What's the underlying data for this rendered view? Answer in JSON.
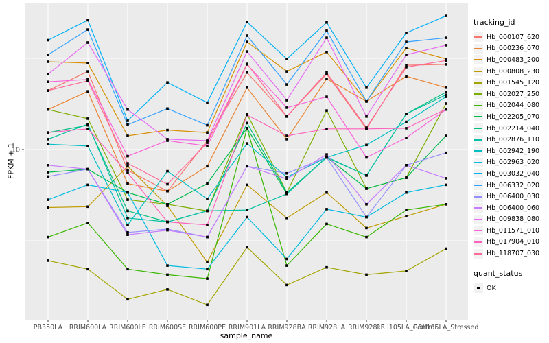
{
  "figure": {
    "colors": {
      "panel_bg": "#EBEBEB",
      "grid_major": "#FFFFFF",
      "grid_minor": "#F7F7F7",
      "tick_text": "#4D4D4D",
      "axis_title": "#000000",
      "point": "#000000",
      "legend_key_bg": "#F2F2F2"
    }
  },
  "chart_data": {
    "type": "line",
    "title": "",
    "xlabel": "sample_name",
    "ylabel": "FPKM + 1",
    "x_scale": "discrete",
    "y_scale": "log10",
    "y_ticks_shown": [
      10
    ],
    "ylim": [
      1.2,
      60
    ],
    "grid": "ggplot-grey-panel",
    "legend_position": "right",
    "legend_title": "tracking_id",
    "point_legend": {
      "title": "quant_status",
      "label": "OK",
      "marker": "black-square"
    },
    "marker": "black-square",
    "categories": [
      "PB350LA",
      "RRIM600LA",
      "RRIM600LE",
      "RRIM600SE",
      "RRIM600PE",
      "RRIM901LA",
      "RRIM928BA",
      "RRIM928LA",
      "RRIM928LE",
      "RRII105LA_Control",
      "RRII105LA_Stressed"
    ],
    "series": [
      {
        "name": "Hb_000107_620",
        "color": "#F8766D",
        "values": [
          21.1,
          26.9,
          7.7,
          5.9,
          11.2,
          26.5,
          15.2,
          26.0,
          13.0,
          29.1,
          29.4
        ]
      },
      {
        "name": "Hb_000236_070",
        "color": "#EA8331",
        "values": [
          16.6,
          20.9,
          6.5,
          5.9,
          8.1,
          21.9,
          11.4,
          24.5,
          18.4,
          25.3,
          21.9
        ]
      },
      {
        "name": "Hb_000483_200",
        "color": "#D89000",
        "values": [
          30.4,
          29.9,
          11.9,
          12.8,
          12.4,
          39.1,
          26.9,
          34.4,
          18.4,
          36.2,
          31.5
        ]
      },
      {
        "name": "Hb_000808_230",
        "color": "#C09B00",
        "values": [
          4.8,
          4.85,
          8.1,
          4.9,
          2.4,
          6.4,
          4.2,
          5.8,
          3.7,
          4.3,
          5.0
        ]
      },
      {
        "name": "Hb_001545_120",
        "color": "#A3A500",
        "values": [
          2.45,
          2.2,
          1.5,
          1.7,
          1.4,
          2.9,
          1.8,
          2.25,
          2.05,
          2.15,
          2.85
        ]
      },
      {
        "name": "Hb_002027_250",
        "color": "#7CAE00",
        "values": [
          16.6,
          14.8,
          5.3,
          5.0,
          4.6,
          15.7,
          5.8,
          16.4,
          6.1,
          7.0,
          17.9
        ]
      },
      {
        "name": "Hb_002044_080",
        "color": "#39B600",
        "values": [
          3.3,
          3.95,
          2.2,
          2.05,
          1.95,
          13.1,
          2.3,
          3.9,
          3.3,
          4.65,
          5.0
        ]
      },
      {
        "name": "Hb_002205_070",
        "color": "#00BB4E",
        "values": [
          7.5,
          7.8,
          5.8,
          5.0,
          6.5,
          13.1,
          5.7,
          9.1,
          6.1,
          7.0,
          11.9
        ]
      },
      {
        "name": "Hb_002214_040",
        "color": "#00BF7D",
        "values": [
          12.4,
          13.6,
          4.6,
          4.0,
          4.6,
          14.0,
          5.8,
          9.05,
          7.2,
          15.7,
          20.7
        ]
      },
      {
        "name": "Hb_002876_110",
        "color": "#00C1A3",
        "values": [
          11.4,
          13.8,
          4.2,
          4.0,
          4.6,
          4.65,
          5.7,
          9.1,
          7.2,
          15.7,
          20.0
        ]
      },
      {
        "name": "Hb_002942_190",
        "color": "#00BFC4",
        "values": [
          10.7,
          10.45,
          3.85,
          7.6,
          5.35,
          10.8,
          7.05,
          9.05,
          10.6,
          14.2,
          19.5
        ]
      },
      {
        "name": "Hb_002963_020",
        "color": "#00BAE0",
        "values": [
          5.3,
          6.4,
          5.8,
          2.3,
          2.2,
          4.25,
          2.5,
          4.7,
          4.25,
          5.8,
          6.4
        ]
      },
      {
        "name": "Hb_003032_040",
        "color": "#00B0F6",
        "values": [
          40.0,
          51.5,
          14.4,
          23.4,
          18.1,
          50.3,
          31.5,
          50.0,
          21.9,
          43.8,
          54.4
        ]
      },
      {
        "name": "Hb_006332_020",
        "color": "#35A2FF",
        "values": [
          33.2,
          45.7,
          13.7,
          16.8,
          13.6,
          42.3,
          22.8,
          45.0,
          18.4,
          39.1,
          41.2
        ]
      },
      {
        "name": "Hb_006400_030",
        "color": "#9590FF",
        "values": [
          7.1,
          7.8,
          3.5,
          3.65,
          3.3,
          8.1,
          7.4,
          9.05,
          4.25,
          8.2,
          9.6
        ]
      },
      {
        "name": "Hb_006400_060",
        "color": "#C77CFF",
        "values": [
          8.2,
          7.8,
          3.4,
          3.6,
          3.3,
          8.1,
          6.9,
          9.4,
          5.0,
          8.2,
          6.95
        ]
      },
      {
        "name": "Hb_009838_080",
        "color": "#E76BF3",
        "values": [
          26.0,
          38.8,
          16.6,
          11.4,
          11.2,
          34.6,
          18.7,
          41.2,
          15.2,
          33.2,
          37.5
        ]
      },
      {
        "name": "Hb_011571_010",
        "color": "#FA62DB",
        "values": [
          23.6,
          24.3,
          9.2,
          11.2,
          10.45,
          29.4,
          17.0,
          19.5,
          9.05,
          11.6,
          16.6
        ]
      },
      {
        "name": "Hb_017904_010",
        "color": "#FF62BC",
        "values": [
          12.4,
          13.0,
          7.45,
          4.0,
          3.85,
          15.5,
          11.9,
          13.0,
          13.0,
          13.1,
          16.7
        ]
      },
      {
        "name": "Hb_118707_030",
        "color": "#FF6A98",
        "values": [
          21.1,
          23.9,
          8.4,
          6.45,
          10.9,
          29.6,
          15.2,
          26.5,
          13.2,
          28.4,
          30.9
        ]
      }
    ]
  }
}
